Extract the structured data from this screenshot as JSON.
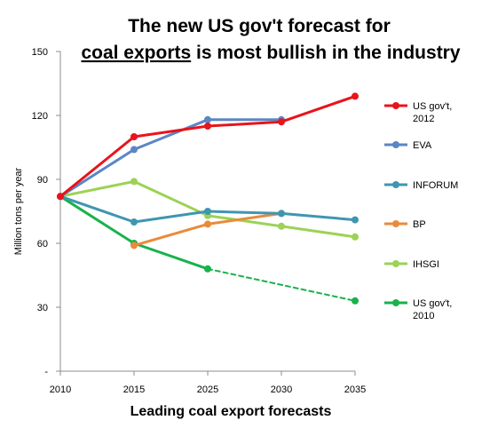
{
  "chart_data": {
    "type": "line",
    "title_line1": "The new US gov't forecast for",
    "title_line2_underlined": "coal exports",
    "title_line2_rest": " is most bullish in the industry",
    "xlabel": "Leading coal export forecasts",
    "ylabel": "Million tons per year",
    "categories": [
      "2010",
      "2015",
      "2025",
      "2030",
      "2035"
    ],
    "ylim": [
      0,
      150
    ],
    "yticks": [
      {
        "value": 0,
        "label": "-"
      },
      {
        "value": 30,
        "label": "30"
      },
      {
        "value": 60,
        "label": "60"
      },
      {
        "value": 90,
        "label": "90"
      },
      {
        "value": 120,
        "label": "120"
      },
      {
        "value": 150,
        "label": "150"
      }
    ],
    "grid": false,
    "legend_position": "right",
    "series": [
      {
        "name": "US gov't, 2012",
        "legend_lines": [
          "US gov't,",
          "2012"
        ],
        "color": "#e8141b",
        "values": [
          82,
          110,
          115,
          117,
          129
        ]
      },
      {
        "name": "EVA",
        "legend_lines": [
          "EVA"
        ],
        "color": "#5b86c4",
        "values": [
          82,
          104,
          118,
          118,
          null
        ]
      },
      {
        "name": "INFORUM",
        "legend_lines": [
          "INFORUM"
        ],
        "color": "#3f96b0",
        "values": [
          82,
          70,
          75,
          74,
          71
        ]
      },
      {
        "name": "BP",
        "legend_lines": [
          "BP"
        ],
        "color": "#e98b3a",
        "values": [
          null,
          59,
          69,
          74,
          null
        ]
      },
      {
        "name": "IHSGI",
        "legend_lines": [
          "IHSGI"
        ],
        "color": "#9cd255",
        "values": [
          82,
          89,
          73,
          68,
          63
        ]
      },
      {
        "name": "US gov't, 2010",
        "legend_lines": [
          "US gov't,",
          "2010"
        ],
        "color": "#19b24b",
        "values": [
          82,
          60,
          48,
          null,
          33
        ],
        "dashed_from_index": 2
      }
    ]
  }
}
